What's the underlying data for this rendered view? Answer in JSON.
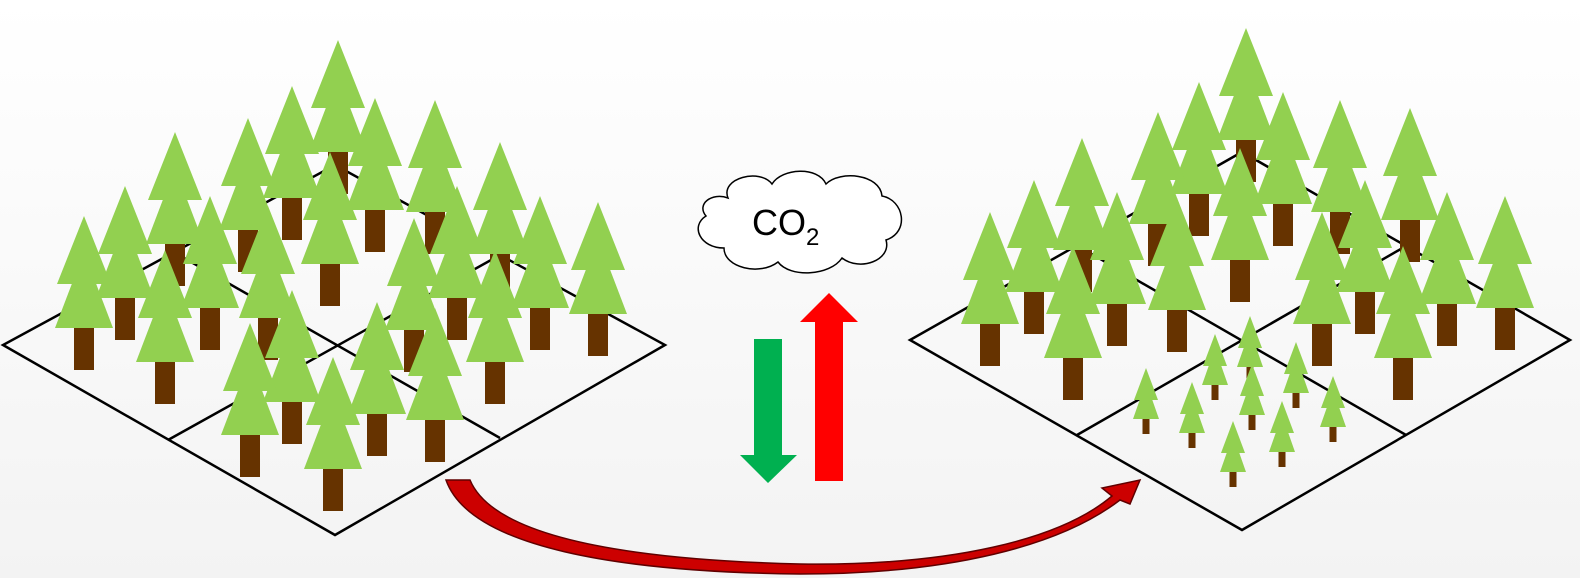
{
  "cloud": {
    "label": "CO",
    "subscript": "2"
  },
  "colors": {
    "foliage": "#92d050",
    "trunk": "#663300",
    "plot_outline": "#000000",
    "down_arrow": "#00b050",
    "up_arrow": "#ff0000",
    "transition_arrow": "#cc0000"
  },
  "scenes": [
    {
      "name": "left-forest",
      "state": "all plots mature"
    },
    {
      "name": "right-forest",
      "state": "one plot replanted with saplings"
    }
  ],
  "icons": [
    "tree-icon",
    "sapling-icon",
    "cloud-icon",
    "arrow-down-icon",
    "arrow-up-icon",
    "curved-arrow-icon"
  ]
}
